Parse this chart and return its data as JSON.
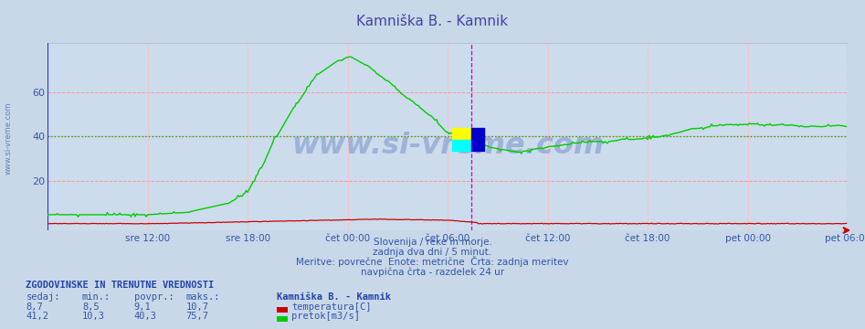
{
  "title": "Kamniška B. - Kamnik",
  "title_color": "#4444aa",
  "bg_color": "#ccdcec",
  "plot_bg_color": "#ccdcec",
  "fig_bg_color": "#c8d8e8",
  "xlabel_color": "#3355aa",
  "ylabel_color": "#3355aa",
  "grid_color_h": "#ff9999",
  "grid_color_v": "#ffbbbb",
  "x_tick_labels": [
    "sre 12:00",
    "sre 18:00",
    "čet 00:00",
    "čet 06:00",
    "čet 12:00",
    "čet 18:00",
    "pet 00:00",
    "pet 06:00"
  ],
  "y_ticks": [
    20,
    40,
    60
  ],
  "y_lim": [
    -2,
    82
  ],
  "x_lim": [
    0,
    576
  ],
  "temp_color": "#cc0000",
  "flow_color": "#00cc00",
  "avg_line_color": "#00bb00",
  "avg_line_value": 40.3,
  "watermark_text": "www.si-vreme.com",
  "footer_line1": "Slovenija / reke in morje.",
  "footer_line2": "zadnja dva dni / 5 minut.",
  "footer_line3": "Meritve: povrečne  Enote: metrične  Črta: zadnja meritev",
  "footer_line4": "navpična črta - razdelek 24 ur",
  "table_header": "ZGODOVINSKE IN TRENUTNE VREDNOSTI",
  "col_headers": [
    "sedaj:",
    "min.:",
    "povpr.:",
    "maks.:"
  ],
  "row1": [
    "8,7",
    "8,5",
    "9,1",
    "10,7"
  ],
  "row2": [
    "41,2",
    "10,3",
    "40,3",
    "75,7"
  ],
  "legend_label1": "temperatura[C]",
  "legend_label2": "pretok[m3/s]",
  "legend_station": "Kamniška B. - Kamnik",
  "vline_blue_color": "#0000ff",
  "vline_magenta_color": "#cc00cc",
  "n_points": 576,
  "x_tick_positions": [
    72,
    144,
    216,
    288,
    360,
    432,
    504,
    576
  ],
  "current_x": 305
}
